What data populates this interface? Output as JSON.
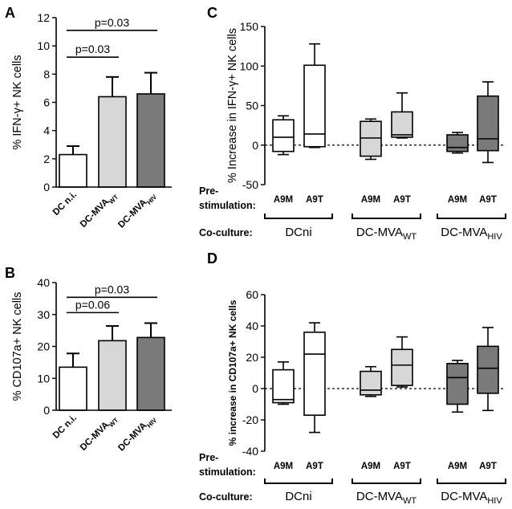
{
  "colors": {
    "white": "#ffffff",
    "light_gray": "#d7d7d7",
    "dark_gray": "#7a7a7a",
    "line": "#000000"
  },
  "chart_data": [
    {
      "panel_id": "A",
      "type": "bar",
      "ylabel": "% IFN-γ+ NK cells",
      "ylim": [
        0,
        12
      ],
      "yticks": [
        0,
        2,
        4,
        6,
        8,
        10,
        12
      ],
      "categories": [
        {
          "main": "DC n.i.",
          "sub": ""
        },
        {
          "main": "DC-MVA",
          "sub": "WT"
        },
        {
          "main": "DC-MVA",
          "sub": "HIV"
        }
      ],
      "values": [
        2.3,
        6.4,
        6.6
      ],
      "errors": [
        0.6,
        1.4,
        1.5
      ],
      "fills": [
        "white",
        "light_gray",
        "dark_gray"
      ],
      "brackets": [
        {
          "text": "p=0.03",
          "from": 0,
          "to": 1,
          "y": 9.2
        },
        {
          "text": "p=0.03",
          "from": 0,
          "to": 2,
          "y": 11.1
        }
      ]
    },
    {
      "panel_id": "B",
      "type": "bar",
      "ylabel": "% CD107a+ NK cells",
      "ylim": [
        0,
        40
      ],
      "yticks": [
        0,
        10,
        20,
        30,
        40
      ],
      "categories": [
        {
          "main": "DC n.i.",
          "sub": ""
        },
        {
          "main": "DC-MVA",
          "sub": "WT"
        },
        {
          "main": "DC-MVA",
          "sub": "HIV"
        }
      ],
      "values": [
        13.5,
        21.8,
        22.8
      ],
      "errors": [
        4.3,
        4.6,
        4.5
      ],
      "fills": [
        "white",
        "light_gray",
        "dark_gray"
      ],
      "brackets": [
        {
          "text": "p=0.06",
          "from": 0,
          "to": 1,
          "y": 30.6
        },
        {
          "text": "p=0.03",
          "from": 0,
          "to": 2,
          "y": 35.4
        }
      ]
    },
    {
      "panel_id": "C",
      "type": "box",
      "ylabel": "% Increase in IFN-γ+ NK cells",
      "ylim": [
        -50,
        150
      ],
      "yticks": [
        -50,
        0,
        50,
        100,
        150
      ],
      "reference_line": 0,
      "prestim_label": [
        "Pre-",
        "stimulation:"
      ],
      "coculture_label": "Co-culture:",
      "groups": [
        {
          "main": "DCni",
          "sub": ""
        },
        {
          "main": "DC-MVA",
          "sub": "WT"
        },
        {
          "main": "DC-MVA",
          "sub": "HIV"
        }
      ],
      "boxes": [
        {
          "label": "A9M",
          "min": -12,
          "q1": -8,
          "median": 10,
          "q3": 32,
          "max": 37,
          "fill": "white"
        },
        {
          "label": "A9T",
          "min": -3,
          "q1": -2,
          "median": 14,
          "q3": 101,
          "max": 128,
          "fill": "white"
        },
        {
          "label": "A9M",
          "min": -18,
          "q1": -14,
          "median": 9,
          "q3": 30,
          "max": 33,
          "fill": "light_gray"
        },
        {
          "label": "A9T",
          "min": 9,
          "q1": 10,
          "median": 13,
          "q3": 42,
          "max": 66,
          "fill": "light_gray"
        },
        {
          "label": "A9M",
          "min": -10,
          "q1": -8,
          "median": -3,
          "q3": 13,
          "max": 16,
          "fill": "dark_gray"
        },
        {
          "label": "A9T",
          "min": -22,
          "q1": -7,
          "median": 8,
          "q3": 62,
          "max": 80,
          "fill": "dark_gray"
        }
      ]
    },
    {
      "panel_id": "D",
      "type": "box",
      "ylabel": "% increase in CD107a+ NK cells",
      "ylim": [
        -40,
        60
      ],
      "yticks": [
        -40,
        -20,
        0,
        20,
        40,
        60
      ],
      "reference_line": 0,
      "prestim_label": [
        "Pre-",
        "stimulation:"
      ],
      "coculture_label": "Co-culture:",
      "groups": [
        {
          "main": "DCni",
          "sub": ""
        },
        {
          "main": "DC-MVA",
          "sub": "WT"
        },
        {
          "main": "DC-MVA",
          "sub": "HIV"
        }
      ],
      "boxes": [
        {
          "label": "A9M",
          "min": -10,
          "q1": -9,
          "median": -7,
          "q3": 12,
          "max": 17,
          "fill": "white"
        },
        {
          "label": "A9T",
          "min": -28,
          "q1": -17,
          "median": 22,
          "q3": 36,
          "max": 42,
          "fill": "white"
        },
        {
          "label": "A9M",
          "min": -5,
          "q1": -4,
          "median": -1,
          "q3": 11,
          "max": 14,
          "fill": "light_gray"
        },
        {
          "label": "A9T",
          "min": 1,
          "q1": 2,
          "median": 15,
          "q3": 25,
          "max": 33,
          "fill": "light_gray"
        },
        {
          "label": "A9M",
          "min": -15,
          "q1": -10,
          "median": 7,
          "q3": 16,
          "max": 18,
          "fill": "dark_gray"
        },
        {
          "label": "A9T",
          "min": -14,
          "q1": -3,
          "median": 13,
          "q3": 27,
          "max": 39,
          "fill": "dark_gray"
        }
      ]
    }
  ]
}
